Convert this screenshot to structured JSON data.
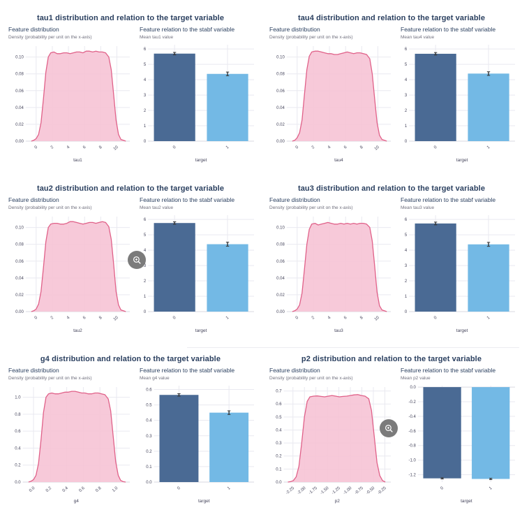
{
  "colors": {
    "title": "#2a3f5f",
    "subtitle": "#2a3f5f",
    "caption": "#70707e",
    "tick": "#45455c",
    "grid": "#e9e9f0",
    "zero_line": "#d9d9e2",
    "density_fill": "#f6c3d5",
    "density_stroke": "#e06189",
    "bar_colors": [
      "#4a6a94",
      "#73b9e5"
    ],
    "error_bar": "#333333",
    "zoom_button_bg": "#707070",
    "zoom_button_glyph": "#ffffff"
  },
  "zoom_buttons": [
    {
      "panel": "tau2",
      "icon": "zoom-in-icon"
    },
    {
      "panel": "p2",
      "icon": "zoom-in-icon"
    }
  ],
  "panels": [
    {
      "id": "tau1",
      "title": "tau1 distribution and relation to the target variable",
      "left": {
        "subtitle": "Feature distribution",
        "caption": "Density (probability per unit on the x-axis)"
      },
      "right": {
        "subtitle": "Feature relation to the stabf variable",
        "caption": "Mean tau1 value"
      }
    },
    {
      "id": "tau4",
      "title": "tau4 distribution and relation to the target variable",
      "left": {
        "subtitle": "Feature distribution",
        "caption": "Density (probability per unit on the x-axis)"
      },
      "right": {
        "subtitle": "Feature relation to the stabf variable",
        "caption": "Mean tau4 value"
      }
    },
    {
      "id": "tau2",
      "title": "tau2 distribution and relation to the target variable",
      "left": {
        "subtitle": "Feature distribution",
        "caption": "Density (probability per unit on the x-axis)"
      },
      "right": {
        "subtitle": "Feature relation to the stabf variable",
        "caption": "Mean tau2 value"
      }
    },
    {
      "id": "tau3",
      "title": "tau3 distribution and relation to the target variable",
      "left": {
        "subtitle": "Feature distribution",
        "caption": "Density (probability per unit on the x-axis)"
      },
      "right": {
        "subtitle": "Feature relation to the stabf variable",
        "caption": "Mean tau3 value"
      }
    },
    {
      "id": "g4",
      "title": "g4 distribution and relation to the target variable",
      "left": {
        "subtitle": "Feature distribution",
        "caption": "Density (probability per unit on the x-axis)"
      },
      "right": {
        "subtitle": "Feature relation to the stabf variable",
        "caption": "Mean g4 value"
      }
    },
    {
      "id": "p2",
      "title": "p2 distribution and relation to the target variable",
      "left": {
        "subtitle": "Feature distribution",
        "caption": "Density (probability per unit on the x-axis)"
      },
      "right": {
        "subtitle": "Feature relation to the stabf variable",
        "caption": "Mean p2 value"
      }
    }
  ],
  "chart_data": [
    {
      "feature": "tau1",
      "density": {
        "type": "area",
        "xlabel": "tau1",
        "x_tick_vals": [
          0,
          2,
          4,
          6,
          8,
          10
        ],
        "x_ticks": [
          "0",
          "2",
          "4",
          "6",
          "8",
          "10"
        ],
        "y_tick_vals": [
          0,
          0.02,
          0.04,
          0.06,
          0.08,
          0.1
        ],
        "y_ticks": [
          "0.00",
          "0.02",
          "0.04",
          "0.06",
          "0.08",
          "0.10"
        ],
        "xlim": [
          -1.3,
          11.6
        ],
        "ylim": [
          0,
          0.113
        ],
        "x": [
          -0.6,
          -0.3,
          0,
          0.3,
          0.6,
          0.9,
          1.2,
          1.5,
          1.8,
          2.2,
          2.6,
          3,
          3.4,
          3.8,
          4.2,
          4.6,
          5,
          5.4,
          5.8,
          6.2,
          6.6,
          7,
          7.4,
          7.8,
          8.2,
          8.6,
          9,
          9.3,
          9.6,
          9.9,
          10.2,
          10.5,
          10.8,
          11.1
        ],
        "y": [
          0,
          0.001,
          0.003,
          0.008,
          0.022,
          0.05,
          0.082,
          0.1,
          0.105,
          0.106,
          0.104,
          0.104,
          0.105,
          0.105,
          0.104,
          0.105,
          0.106,
          0.106,
          0.105,
          0.107,
          0.107,
          0.106,
          0.107,
          0.106,
          0.106,
          0.105,
          0.1,
          0.085,
          0.055,
          0.025,
          0.008,
          0.002,
          0.001,
          0
        ]
      },
      "bars": {
        "type": "bar",
        "xlabel": "target",
        "categories": [
          "0",
          "1"
        ],
        "values": [
          5.7,
          4.38
        ],
        "errors": [
          0.08,
          0.12
        ],
        "y_tick_vals": [
          0,
          1,
          2,
          3,
          4,
          5,
          6
        ],
        "y_ticks": [
          "0",
          "1",
          "2",
          "3",
          "4",
          "5",
          "6"
        ],
        "ylim": [
          0,
          6.28
        ]
      }
    },
    {
      "feature": "tau4",
      "density": {
        "type": "area",
        "xlabel": "tau4",
        "x_tick_vals": [
          0,
          2,
          4,
          6,
          8,
          10
        ],
        "x_ticks": [
          "0",
          "2",
          "4",
          "6",
          "8",
          "10"
        ],
        "y_tick_vals": [
          0,
          0.02,
          0.04,
          0.06,
          0.08,
          0.1
        ],
        "y_ticks": [
          "0.00",
          "0.02",
          "0.04",
          "0.06",
          "0.08",
          "0.10"
        ],
        "xlim": [
          -1.3,
          11.6
        ],
        "ylim": [
          0,
          0.113
        ],
        "x": [
          -0.6,
          -0.3,
          0,
          0.3,
          0.6,
          0.9,
          1.2,
          1.5,
          1.8,
          2.2,
          2.6,
          3,
          3.4,
          3.8,
          4.2,
          4.6,
          5,
          5.4,
          5.8,
          6.2,
          6.6,
          7,
          7.4,
          7.8,
          8.2,
          8.6,
          9,
          9.3,
          9.6,
          9.9,
          10.2,
          10.5,
          10.8,
          11.1
        ],
        "y": [
          0,
          0.001,
          0.004,
          0.01,
          0.025,
          0.055,
          0.085,
          0.101,
          0.106,
          0.107,
          0.107,
          0.106,
          0.105,
          0.104,
          0.104,
          0.103,
          0.103,
          0.104,
          0.105,
          0.106,
          0.105,
          0.104,
          0.105,
          0.105,
          0.104,
          0.103,
          0.098,
          0.08,
          0.05,
          0.022,
          0.007,
          0.002,
          0.001,
          0
        ]
      },
      "bars": {
        "type": "bar",
        "xlabel": "target",
        "categories": [
          "0",
          "1"
        ],
        "values": [
          5.69,
          4.4
        ],
        "errors": [
          0.08,
          0.12
        ],
        "y_tick_vals": [
          0,
          1,
          2,
          3,
          4,
          5,
          6
        ],
        "y_ticks": [
          "0",
          "1",
          "2",
          "3",
          "4",
          "5",
          "6"
        ],
        "ylim": [
          0,
          6.28
        ]
      }
    },
    {
      "feature": "tau2",
      "density": {
        "type": "area",
        "xlabel": "tau2",
        "x_tick_vals": [
          0,
          2,
          4,
          6,
          8,
          10
        ],
        "x_ticks": [
          "0",
          "2",
          "4",
          "6",
          "8",
          "10"
        ],
        "y_tick_vals": [
          0,
          0.02,
          0.04,
          0.06,
          0.08,
          0.1
        ],
        "y_ticks": [
          "0.00",
          "0.02",
          "0.04",
          "0.06",
          "0.08",
          "0.10"
        ],
        "xlim": [
          -1.3,
          11.6
        ],
        "ylim": [
          0,
          0.113
        ],
        "x": [
          -0.6,
          -0.3,
          0,
          0.3,
          0.6,
          0.9,
          1.2,
          1.5,
          1.8,
          2.2,
          2.6,
          3,
          3.4,
          3.8,
          4.2,
          4.6,
          5,
          5.4,
          5.8,
          6.2,
          6.6,
          7,
          7.4,
          7.8,
          8.2,
          8.6,
          9,
          9.3,
          9.6,
          9.9,
          10.2,
          10.5,
          10.8,
          11.1
        ],
        "y": [
          0,
          0.001,
          0.003,
          0.009,
          0.024,
          0.052,
          0.083,
          0.1,
          0.104,
          0.105,
          0.105,
          0.104,
          0.104,
          0.105,
          0.107,
          0.107,
          0.106,
          0.105,
          0.104,
          0.105,
          0.106,
          0.106,
          0.105,
          0.106,
          0.107,
          0.106,
          0.101,
          0.086,
          0.056,
          0.024,
          0.008,
          0.002,
          0.001,
          0
        ]
      },
      "bars": {
        "type": "bar",
        "xlabel": "target",
        "categories": [
          "0",
          "1"
        ],
        "values": [
          5.77,
          4.39
        ],
        "errors": [
          0.08,
          0.13
        ],
        "y_tick_vals": [
          0,
          1,
          2,
          3,
          4,
          5,
          6
        ],
        "y_ticks": [
          "0",
          "1",
          "2",
          "3",
          "4",
          "5",
          "6"
        ],
        "ylim": [
          0,
          6.28
        ]
      }
    },
    {
      "feature": "tau3",
      "density": {
        "type": "area",
        "xlabel": "tau3",
        "x_tick_vals": [
          0,
          2,
          4,
          6,
          8,
          10
        ],
        "x_ticks": [
          "0",
          "2",
          "4",
          "6",
          "8",
          "10"
        ],
        "y_tick_vals": [
          0,
          0.02,
          0.04,
          0.06,
          0.08,
          0.1
        ],
        "y_ticks": [
          "0.00",
          "0.02",
          "0.04",
          "0.06",
          "0.08",
          "0.10"
        ],
        "xlim": [
          -1.3,
          11.6
        ],
        "ylim": [
          0,
          0.113
        ],
        "x": [
          -0.6,
          -0.3,
          0,
          0.3,
          0.6,
          0.9,
          1.2,
          1.5,
          1.8,
          2.2,
          2.6,
          3,
          3.4,
          3.8,
          4.2,
          4.6,
          5,
          5.4,
          5.8,
          6.2,
          6.6,
          7,
          7.4,
          7.8,
          8.2,
          8.6,
          9,
          9.3,
          9.6,
          9.9,
          10.2,
          10.5,
          10.8,
          11.1
        ],
        "y": [
          0,
          0.001,
          0.003,
          0.008,
          0.022,
          0.05,
          0.08,
          0.098,
          0.104,
          0.105,
          0.103,
          0.104,
          0.105,
          0.106,
          0.105,
          0.104,
          0.104,
          0.105,
          0.104,
          0.105,
          0.104,
          0.105,
          0.104,
          0.105,
          0.105,
          0.104,
          0.1,
          0.084,
          0.054,
          0.023,
          0.007,
          0.002,
          0.001,
          0
        ]
      },
      "bars": {
        "type": "bar",
        "xlabel": "target",
        "categories": [
          "0",
          "1"
        ],
        "values": [
          5.74,
          4.38
        ],
        "errors": [
          0.09,
          0.13
        ],
        "y_tick_vals": [
          0,
          1,
          2,
          3,
          4,
          5,
          6
        ],
        "y_ticks": [
          "0",
          "1",
          "2",
          "3",
          "4",
          "5",
          "6"
        ],
        "ylim": [
          0,
          6.28
        ]
      }
    },
    {
      "feature": "g4",
      "density": {
        "type": "area",
        "xlabel": "g4",
        "x_tick_vals": [
          0,
          0.2,
          0.4,
          0.6,
          0.8,
          1.0
        ],
        "x_ticks": [
          "0.0",
          "0.2",
          "0.4",
          "0.6",
          "0.8",
          "1.0"
        ],
        "y_tick_vals": [
          0,
          0.2,
          0.4,
          0.6,
          0.8,
          1.0
        ],
        "y_ticks": [
          "0.0",
          "0.2",
          "0.4",
          "0.6",
          "0.8",
          "1.0"
        ],
        "xlim": [
          -0.13,
          1.16
        ],
        "ylim": [
          0,
          1.12
        ],
        "x": [
          -0.06,
          -0.03,
          0,
          0.03,
          0.06,
          0.09,
          0.12,
          0.15,
          0.18,
          0.22,
          0.26,
          0.3,
          0.34,
          0.38,
          0.42,
          0.46,
          0.5,
          0.54,
          0.58,
          0.62,
          0.66,
          0.7,
          0.74,
          0.78,
          0.82,
          0.86,
          0.9,
          0.93,
          0.96,
          0.99,
          1.02,
          1.05,
          1.08,
          1.11
        ],
        "y": [
          0,
          0.01,
          0.03,
          0.08,
          0.22,
          0.5,
          0.82,
          1.0,
          1.04,
          1.05,
          1.04,
          1.04,
          1.05,
          1.06,
          1.06,
          1.07,
          1.07,
          1.06,
          1.05,
          1.05,
          1.04,
          1.04,
          1.05,
          1.05,
          1.04,
          1.03,
          0.98,
          0.84,
          0.54,
          0.24,
          0.08,
          0.02,
          0.005,
          0
        ]
      },
      "bars": {
        "type": "bar",
        "xlabel": "target",
        "categories": [
          "0",
          "1"
        ],
        "values": [
          0.565,
          0.45
        ],
        "errors": [
          0.008,
          0.012
        ],
        "y_tick_vals": [
          0,
          0.1,
          0.2,
          0.3,
          0.4,
          0.5,
          0.6
        ],
        "y_ticks": [
          "0.0",
          "0.1",
          "0.2",
          "0.3",
          "0.4",
          "0.5",
          "0.6"
        ],
        "ylim": [
          0,
          0.625
        ]
      }
    },
    {
      "feature": "p2",
      "density": {
        "type": "area",
        "xlabel": "p2",
        "x_tick_vals": [
          -2.25,
          -2.0,
          -1.75,
          -1.5,
          -1.25,
          -1.0,
          -0.75,
          -0.5,
          -0.25
        ],
        "x_ticks": [
          "-2.25",
          "-2.00",
          "-1.75",
          "-1.50",
          "-1.25",
          "-1.00",
          "-0.75",
          "-0.50",
          "-0.25"
        ],
        "y_tick_vals": [
          0,
          0.1,
          0.2,
          0.3,
          0.4,
          0.5,
          0.6,
          0.7
        ],
        "y_ticks": [
          "0.0",
          "0.1",
          "0.2",
          "0.3",
          "0.4",
          "0.5",
          "0.6",
          "0.7"
        ],
        "xlim": [
          -2.45,
          -0.12
        ],
        "ylim": [
          0,
          0.73
        ],
        "x": [
          -2.36,
          -2.3,
          -2.24,
          -2.18,
          -2.12,
          -2.06,
          -2.0,
          -1.94,
          -1.88,
          -1.8,
          -1.72,
          -1.64,
          -1.56,
          -1.48,
          -1.4,
          -1.32,
          -1.24,
          -1.16,
          -1.08,
          -1.0,
          -0.92,
          -0.84,
          -0.76,
          -0.68,
          -0.6,
          -0.54,
          -0.48,
          -0.42,
          -0.36,
          -0.3,
          -0.24
        ],
        "y": [
          0,
          0.004,
          0.012,
          0.04,
          0.12,
          0.3,
          0.5,
          0.62,
          0.655,
          0.66,
          0.662,
          0.658,
          0.655,
          0.66,
          0.665,
          0.66,
          0.655,
          0.658,
          0.66,
          0.665,
          0.67,
          0.672,
          0.665,
          0.66,
          0.64,
          0.55,
          0.35,
          0.15,
          0.05,
          0.012,
          0
        ]
      },
      "bars": {
        "type": "bar",
        "xlabel": "target",
        "categories": [
          "0",
          "1"
        ],
        "values": [
          -1.249,
          -1.257
        ],
        "errors": [
          0.008,
          0.009
        ],
        "y_tick_vals": [
          0,
          -0.2,
          -0.4,
          -0.6,
          -0.8,
          -1.0,
          -1.2
        ],
        "y_ticks": [
          "0.0",
          "-0.2",
          "-0.4",
          "-0.6",
          "-0.8",
          "-1.0",
          "-1.2"
        ],
        "ylim": [
          -1.3,
          0.02
        ]
      }
    }
  ]
}
